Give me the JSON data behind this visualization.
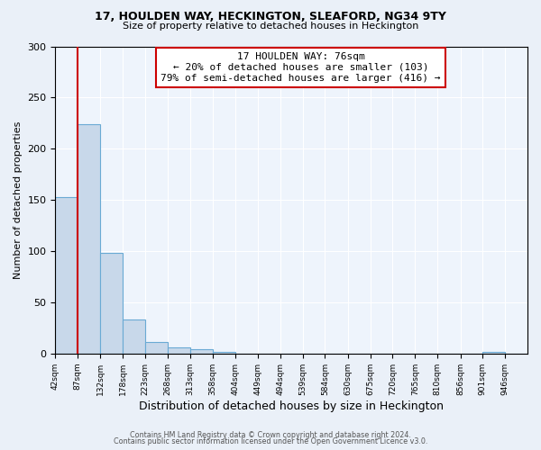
{
  "title": "17, HOULDEN WAY, HECKINGTON, SLEAFORD, NG34 9TY",
  "subtitle": "Size of property relative to detached houses in Heckington",
  "xlabel": "Distribution of detached houses by size in Heckington",
  "ylabel": "Number of detached properties",
  "bar_color": "#c8d8ea",
  "bar_edge_color": "#6aaad4",
  "annotation_title": "17 HOULDEN WAY: 76sqm",
  "annotation_line1": "← 20% of detached houses are smaller (103)",
  "annotation_line2": "79% of semi-detached houses are larger (416) →",
  "vline_color": "#cc0000",
  "vline_x_idx": 1,
  "categories": [
    "42sqm",
    "87sqm",
    "132sqm",
    "178sqm",
    "223sqm",
    "268sqm",
    "313sqm",
    "358sqm",
    "404sqm",
    "449sqm",
    "494sqm",
    "539sqm",
    "584sqm",
    "630sqm",
    "675sqm",
    "720sqm",
    "765sqm",
    "810sqm",
    "856sqm",
    "901sqm",
    "946sqm"
  ],
  "bin_edges": [
    42,
    87,
    132,
    178,
    223,
    268,
    313,
    358,
    404,
    449,
    494,
    539,
    584,
    630,
    675,
    720,
    765,
    810,
    856,
    901,
    946,
    991
  ],
  "values": [
    153,
    224,
    98,
    33,
    11,
    6,
    4,
    2,
    0,
    0,
    0,
    0,
    0,
    0,
    0,
    0,
    0,
    0,
    0,
    2,
    0
  ],
  "ylim": [
    0,
    300
  ],
  "yticks": [
    0,
    50,
    100,
    150,
    200,
    250,
    300
  ],
  "footer1": "Contains HM Land Registry data © Crown copyright and database right 2024.",
  "footer2": "Contains public sector information licensed under the Open Government Licence v3.0.",
  "bg_color": "#eaf0f8",
  "plot_bg_color": "#eef4fc"
}
